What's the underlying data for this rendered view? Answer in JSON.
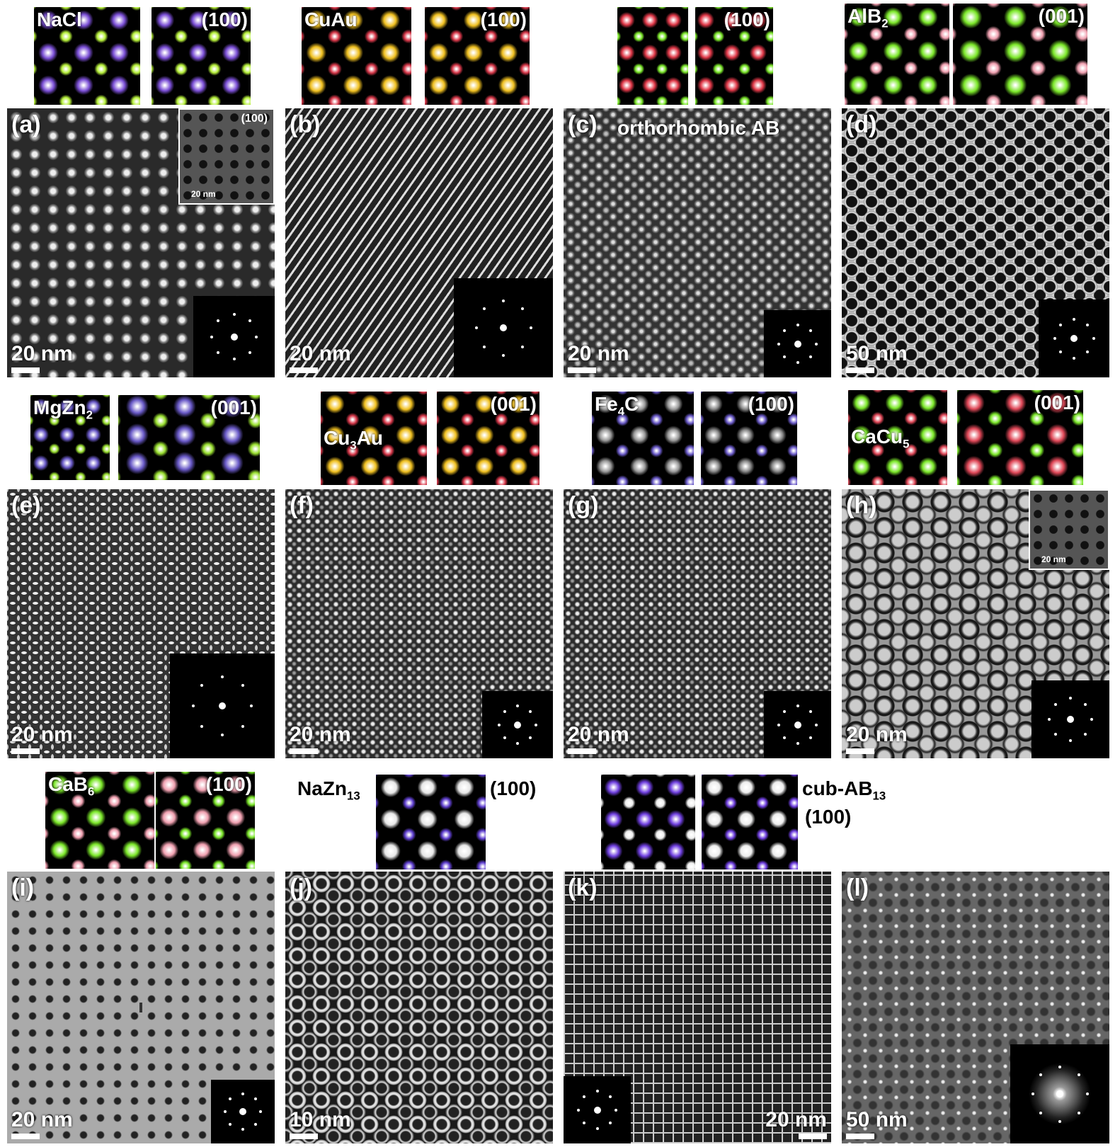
{
  "figure": {
    "panels": [
      {
        "label": "(a)",
        "scale": "20 nm",
        "pattern": "square-dots",
        "inset": {
          "label": "(100)",
          "scale": "20 nm"
        },
        "models": [
          {
            "name": "NaCl",
            "sub": "",
            "colors": [
              "#7b4fd6",
              "#b6f03a"
            ]
          },
          {
            "name": "(100)",
            "sub": "",
            "colors": [
              "#7b4fd6",
              "#b6f03a"
            ]
          }
        ]
      },
      {
        "label": "(b)",
        "scale": "20 nm",
        "pattern": "diagonal-lines",
        "models": [
          {
            "name": "CuAu",
            "sub": "",
            "colors": [
              "#f0c020",
              "#d8384a"
            ]
          },
          {
            "name": "(100)",
            "sub": "",
            "colors": [
              "#f0c020",
              "#d8384a"
            ]
          }
        ]
      },
      {
        "label": "(c)",
        "scale": "20 nm",
        "title": "orthorhombic AB",
        "pattern": "hex-dots",
        "models": [
          {
            "name": "",
            "sub": "",
            "colors": [
              "#e03848",
              "#7ce82a"
            ]
          },
          {
            "name": "(100)",
            "sub": "",
            "colors": [
              "#e03848",
              "#7ce82a"
            ]
          }
        ]
      },
      {
        "label": "(d)",
        "scale": "50 nm",
        "pattern": "honeycomb",
        "models": [
          {
            "name": "AlB",
            "sub": "2",
            "colors": [
              "#7ce82a",
              "#f0a0b0"
            ]
          },
          {
            "name": "(001)",
            "sub": "",
            "colors": [
              "#7ce82a",
              "#f0a0b0"
            ]
          }
        ]
      },
      {
        "label": "(e)",
        "scale": "20 nm",
        "pattern": "worm",
        "models": [
          {
            "name": "MgZn",
            "sub": "2",
            "colors": [
              "#6a5ac8",
              "#9ae030"
            ]
          },
          {
            "name": "(001)",
            "sub": "",
            "colors": [
              "#6a5ac8",
              "#9ae030"
            ]
          }
        ]
      },
      {
        "label": "(f)",
        "scale": "20 nm",
        "pattern": "fine-square",
        "models": [
          {
            "name": "Cu",
            "sub": "3",
            "name2": "Au",
            "colors": [
              "#f0c020",
              "#d8384a"
            ]
          },
          {
            "name": "(001)",
            "sub": "",
            "colors": [
              "#f0c020",
              "#d8384a"
            ]
          }
        ]
      },
      {
        "label": "(g)",
        "scale": "20 nm",
        "pattern": "fine-square",
        "models": [
          {
            "name": "Fe",
            "sub": "4",
            "name2": "C",
            "colors": [
              "#999999",
              "#6a5ac8"
            ]
          },
          {
            "name": "(100)",
            "sub": "",
            "colors": [
              "#888888",
              "#6a5ac8"
            ]
          }
        ]
      },
      {
        "label": "(h)",
        "scale": "20 nm",
        "pattern": "rings",
        "inset": {
          "label": "",
          "scale": "20 nm"
        },
        "models": [
          {
            "name": "CaCu",
            "sub": "5",
            "colors": [
              "#7ce82a",
              "#e04858"
            ]
          },
          {
            "name": "(001)",
            "sub": "",
            "colors": [
              "#e04858",
              "#7ce82a"
            ]
          }
        ]
      },
      {
        "label": "(i)",
        "scale": "20 nm",
        "pattern": "crosses",
        "models": [
          {
            "name": "CaB",
            "sub": "6",
            "colors": [
              "#7ce82a",
              "#f0a0b0"
            ]
          },
          {
            "name": "(100)",
            "sub": "",
            "colors": [
              "#f0a0b0",
              "#7ce82a"
            ]
          }
        ]
      },
      {
        "label": "(j)",
        "scale": "10 nm",
        "pattern": "rings-large",
        "models": [
          {
            "name": "",
            "sub": "",
            "colors": [
              "#e8e8e8",
              "#6040d0"
            ]
          }
        ],
        "outer_labels": [
          {
            "name": "NaZn",
            "sub": "13"
          },
          {
            "name": "(100)",
            "sub": ""
          }
        ]
      },
      {
        "label": "(k)",
        "scale": "20 nm",
        "pattern": "grid",
        "models": [
          {
            "name": "",
            "sub": "",
            "colors": [
              "#7040e0",
              "#eeeeee"
            ]
          },
          {
            "name": "",
            "sub": "",
            "colors": [
              "#eeeeee",
              "#7040e0"
            ]
          }
        ],
        "outer_labels": [
          {
            "name": "cub-AB",
            "sub": "13"
          },
          {
            "name": "(100)",
            "sub": ""
          }
        ]
      },
      {
        "label": "(l)",
        "scale": "50 nm",
        "pattern": "faint-dots",
        "models": []
      }
    ]
  }
}
